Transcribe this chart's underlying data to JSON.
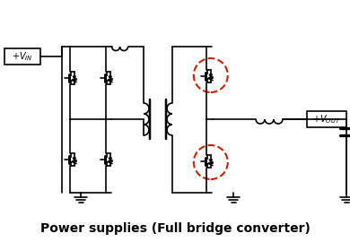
{
  "title": "Power supplies (Full bridge converter)",
  "title_fontsize": 10,
  "title_fontweight": "bold",
  "bg_color": "#ffffff",
  "line_color": "#000000",
  "dashed_circle_color": "#cc2200",
  "fig_width": 3.9,
  "fig_height": 2.7,
  "dpi": 100
}
